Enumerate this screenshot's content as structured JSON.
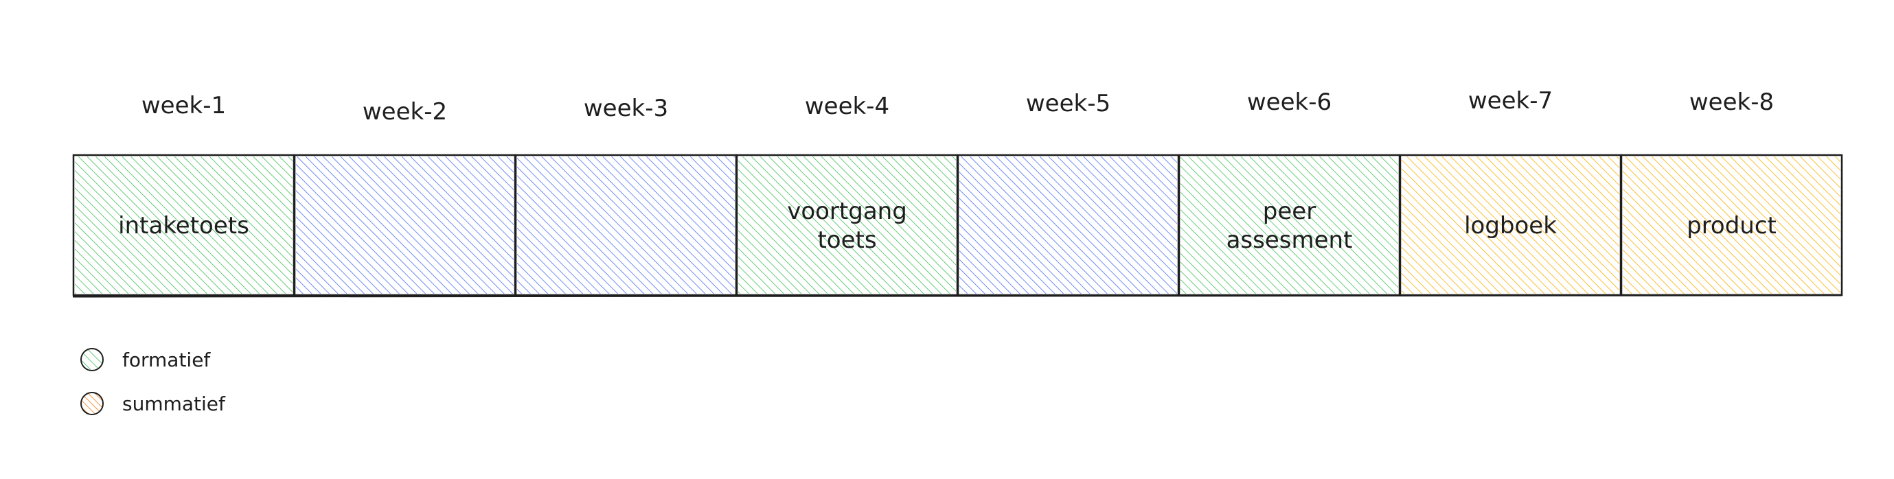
{
  "timeline": {
    "weeks": [
      {
        "label": "week-1",
        "text": [
          "intaketoets"
        ],
        "type": "formatief"
      },
      {
        "label": "week-2",
        "text": [],
        "type": "other"
      },
      {
        "label": "week-3",
        "text": [],
        "type": "other"
      },
      {
        "label": "week-4",
        "text": [
          "voortgang",
          "toets"
        ],
        "type": "formatief"
      },
      {
        "label": "week-5",
        "text": [],
        "type": "other"
      },
      {
        "label": "week-6",
        "text": [
          "peer",
          "assesment"
        ],
        "type": "formatief"
      },
      {
        "label": "week-7",
        "text": [
          "logboek"
        ],
        "type": "summatief"
      },
      {
        "label": "week-8",
        "text": [
          "product"
        ],
        "type": "summatief"
      }
    ]
  },
  "legend": {
    "items": [
      {
        "label": "formatief",
        "type": "formatief"
      },
      {
        "label": "summatief",
        "type": "summatief"
      }
    ]
  },
  "colors": {
    "formatief": "#40c057",
    "summatief": "#fab005",
    "other": "#4c6ef5",
    "summatief_legend": "#fd7e14",
    "outline": "#1e1e1e"
  }
}
